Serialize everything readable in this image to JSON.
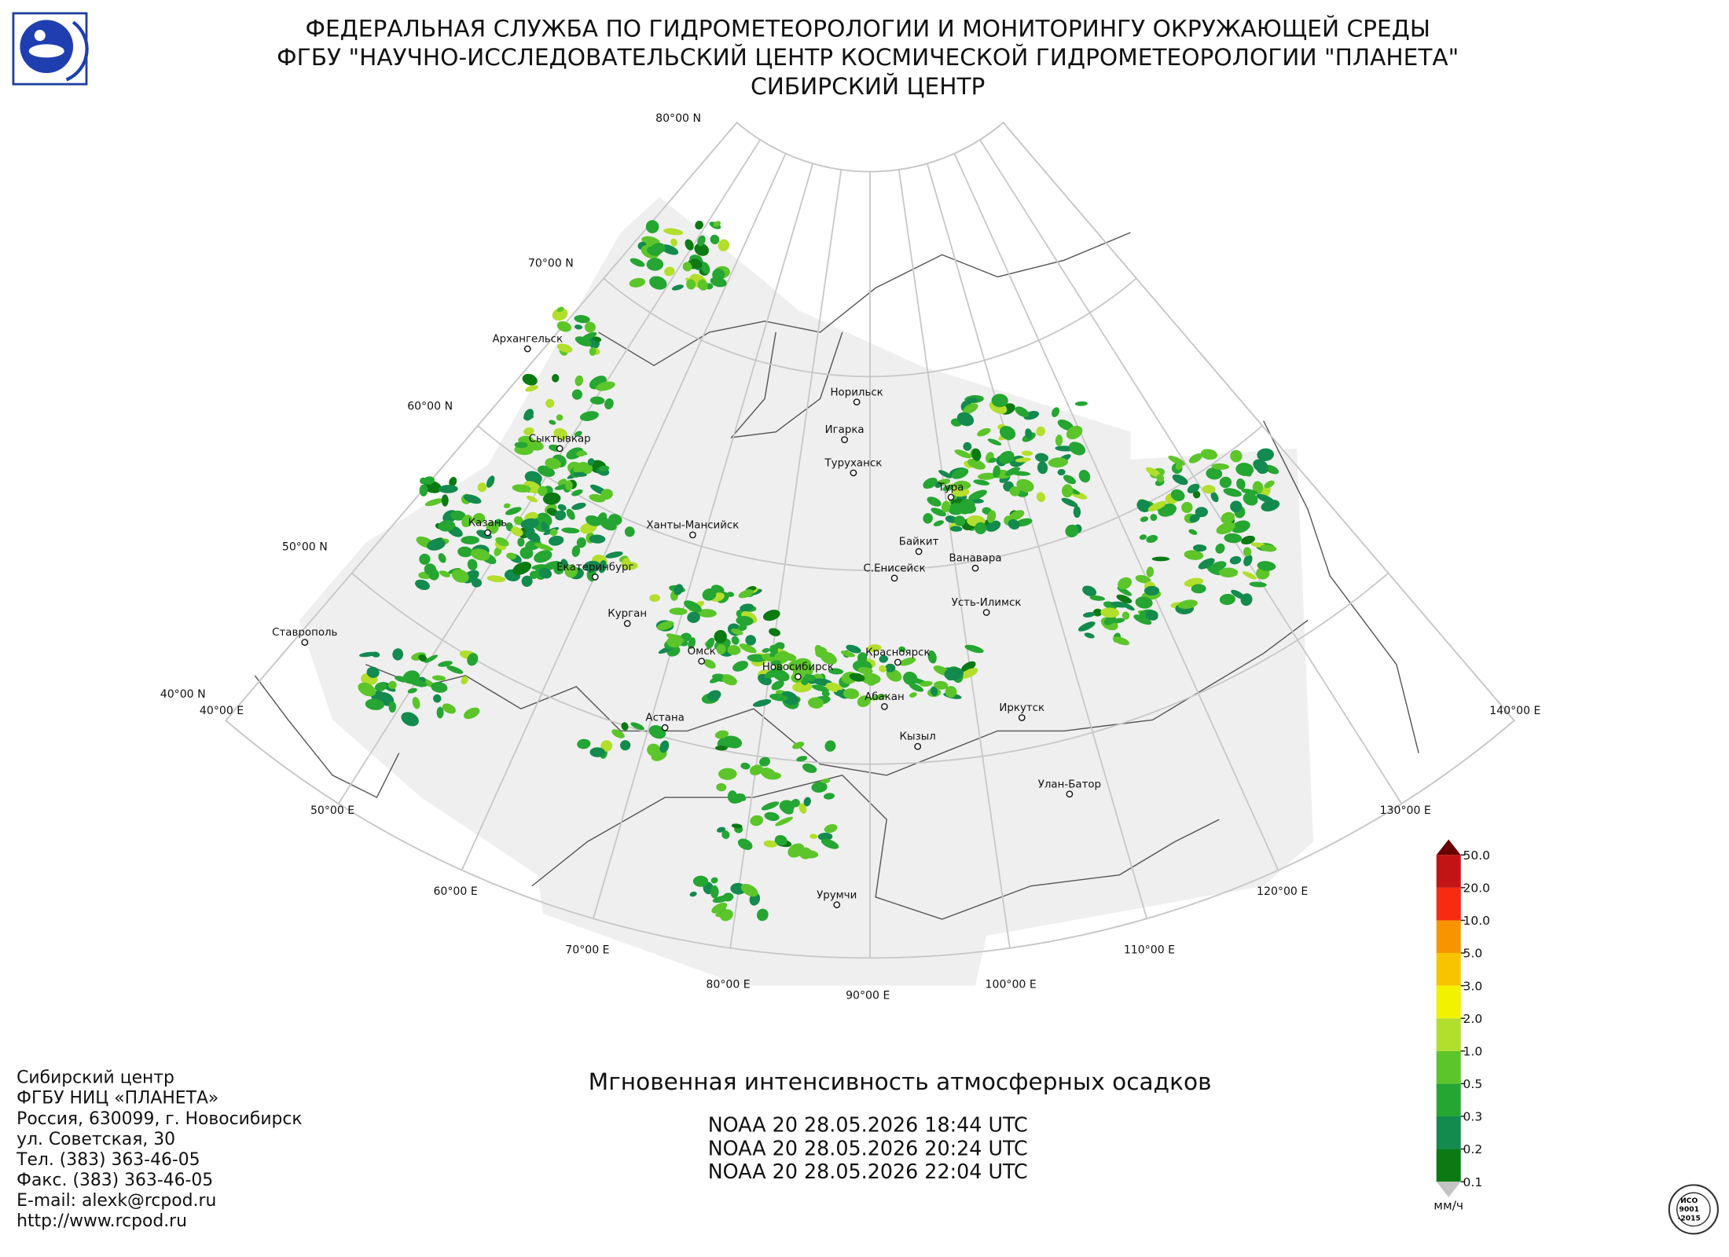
{
  "header": {
    "lines": [
      "ФЕДЕРАЛЬНАЯ СЛУЖБА ПО ГИДРОМЕТЕОРОЛОГИИ И МОНИТОРИНГУ ОКРУЖАЮЩЕЙ СРЕДЫ",
      "ФГБУ \"НАУЧНО-ИССЛЕДОВАТЕЛЬСКИЙ ЦЕНТР КОСМИЧЕСКОЙ ГИДРОМЕТЕОРОЛОГИИ \"ПЛАНЕТА\"",
      "СИБИРСКИЙ ЦЕНТР"
    ]
  },
  "map": {
    "parallels": [
      "80°00 N",
      "70°00 N",
      "60°00 N",
      "50°00 N",
      "40°00 N"
    ],
    "meridians": [
      "40°00 E",
      "50°00 E",
      "60°00 E",
      "70°00 E",
      "80°00 E",
      "90°00 E",
      "100°00 E",
      "110°00 E",
      "120°00 E",
      "130°00 E",
      "140°00 E"
    ],
    "cities": [
      "Архангельск",
      "Сыктывкар",
      "Казань",
      "Екатеринбург",
      "Курган",
      "Ханты-Мансийск",
      "Ставрополь",
      "Омск",
      "Новосибирск",
      "Астана",
      "Норильск",
      "Игарка",
      "Туруханск",
      "Тура",
      "Байкит",
      "Ванавара",
      "С.Енисейск",
      "Усть-Илимск",
      "Красноярск",
      "Абакан",
      "Иркутск",
      "Кызыл",
      "Улан-Батор",
      "Урумчи"
    ]
  },
  "legend": {
    "labels": [
      "0.1",
      "0.2",
      "0.3",
      "0.5",
      "1.0",
      "2.0",
      "3.0",
      "5.0",
      "10.0",
      "20.0",
      "50.0"
    ],
    "colors": [
      "#0b7a12",
      "#138a4e",
      "#25a532",
      "#5cc52a",
      "#b2de2c",
      "#f2f200",
      "#f8c400",
      "#f89400",
      "#f82a10",
      "#c21414"
    ],
    "over_color": "#6a0000",
    "under_color": "#c4c4c4",
    "unit": "мм/ч"
  },
  "title": "Мгновенная интенсивность атмосферных осадков",
  "passes": [
    "NOAA 20 28.05.2026  18:44 UTC",
    "NOAA 20 28.05.2026  20:24 UTC",
    "NOAA 20 28.05.2026  22:04 UTC"
  ],
  "contact": [
    "Сибирский центр",
    "ФГБУ НИЦ «ПЛАНЕТА»",
    "Россия, 630099, г. Новосибирск",
    "ул. Советская, 30",
    "Тел. (383) 363-46-05",
    "Факс. (383) 363-46-05",
    "E-mail: alexk@rcpod.ru",
    "http://www.rcpod.ru"
  ],
  "iso": [
    "ИСО",
    "9001",
    "-2015"
  ]
}
